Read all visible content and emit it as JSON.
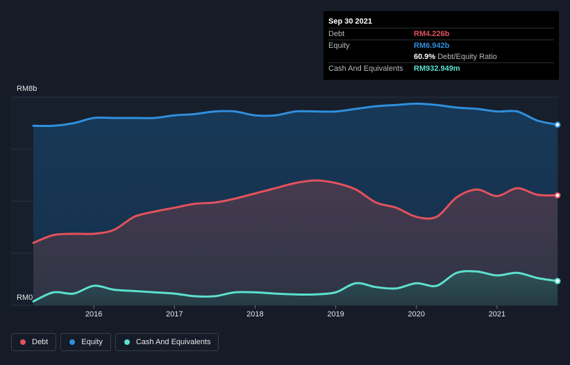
{
  "tooltip": {
    "date": "Sep 30 2021",
    "debt_label": "Debt",
    "debt_value": "RM4.226b",
    "equity_label": "Equity",
    "equity_value": "RM6.942b",
    "ratio_value": "60.9%",
    "ratio_label": "Debt/Equity Ratio",
    "cash_label": "Cash And Equivalents",
    "cash_value": "RM932.949m"
  },
  "legend": [
    {
      "label": "Debt",
      "color": "#e2525c"
    },
    {
      "label": "Equity",
      "color": "#2f8fdd"
    },
    {
      "label": "Cash And Equivalents",
      "color": "#5ee0cf"
    }
  ],
  "chart_data": {
    "type": "area",
    "y_label_top": "RM8b",
    "y_label_bottom": "RM0",
    "ylim": [
      0,
      8
    ],
    "xlim": [
      2015.25,
      2021.75
    ],
    "x_ticks": [
      2016,
      2017,
      2018,
      2019,
      2020,
      2021
    ],
    "x_tick_labels": [
      "2016",
      "2017",
      "2018",
      "2019",
      "2020",
      "2021"
    ],
    "grid": true,
    "series": [
      {
        "name": "Equity",
        "color": "#2f8fdd",
        "x": [
          2015.25,
          2015.5,
          2015.75,
          2016.0,
          2016.25,
          2016.5,
          2016.75,
          2017.0,
          2017.25,
          2017.5,
          2017.75,
          2018.0,
          2018.25,
          2018.5,
          2018.75,
          2019.0,
          2019.25,
          2019.5,
          2019.75,
          2020.0,
          2020.25,
          2020.5,
          2020.75,
          2021.0,
          2021.25,
          2021.5,
          2021.75
        ],
        "values": [
          6.9,
          6.9,
          7.0,
          7.2,
          7.2,
          7.2,
          7.2,
          7.3,
          7.35,
          7.45,
          7.45,
          7.3,
          7.3,
          7.45,
          7.45,
          7.45,
          7.55,
          7.65,
          7.7,
          7.75,
          7.7,
          7.6,
          7.55,
          7.45,
          7.45,
          7.1,
          6.94
        ]
      },
      {
        "name": "Debt",
        "color": "#e2525c",
        "x": [
          2015.25,
          2015.5,
          2015.75,
          2016.0,
          2016.25,
          2016.5,
          2016.75,
          2017.0,
          2017.25,
          2017.5,
          2017.75,
          2018.0,
          2018.25,
          2018.5,
          2018.75,
          2019.0,
          2019.25,
          2019.5,
          2019.75,
          2020.0,
          2020.25,
          2020.5,
          2020.75,
          2021.0,
          2021.25,
          2021.5,
          2021.75
        ],
        "values": [
          2.4,
          2.7,
          2.75,
          2.75,
          2.9,
          3.4,
          3.6,
          3.75,
          3.9,
          3.95,
          4.1,
          4.3,
          4.5,
          4.7,
          4.8,
          4.7,
          4.45,
          3.95,
          3.75,
          3.4,
          3.4,
          4.15,
          4.45,
          4.2,
          4.5,
          4.25,
          4.226
        ]
      },
      {
        "name": "Cash And Equivalents",
        "color": "#5ee0cf",
        "x": [
          2015.25,
          2015.5,
          2015.75,
          2016.0,
          2016.25,
          2016.5,
          2016.75,
          2017.0,
          2017.25,
          2017.5,
          2017.75,
          2018.0,
          2018.25,
          2018.5,
          2018.75,
          2019.0,
          2019.25,
          2019.5,
          2019.75,
          2020.0,
          2020.25,
          2020.5,
          2020.75,
          2021.0,
          2021.25,
          2021.5,
          2021.75
        ],
        "values": [
          0.15,
          0.5,
          0.45,
          0.75,
          0.6,
          0.55,
          0.5,
          0.45,
          0.35,
          0.35,
          0.5,
          0.5,
          0.45,
          0.42,
          0.42,
          0.5,
          0.85,
          0.7,
          0.65,
          0.85,
          0.75,
          1.25,
          1.3,
          1.15,
          1.25,
          1.05,
          0.933
        ]
      }
    ]
  }
}
